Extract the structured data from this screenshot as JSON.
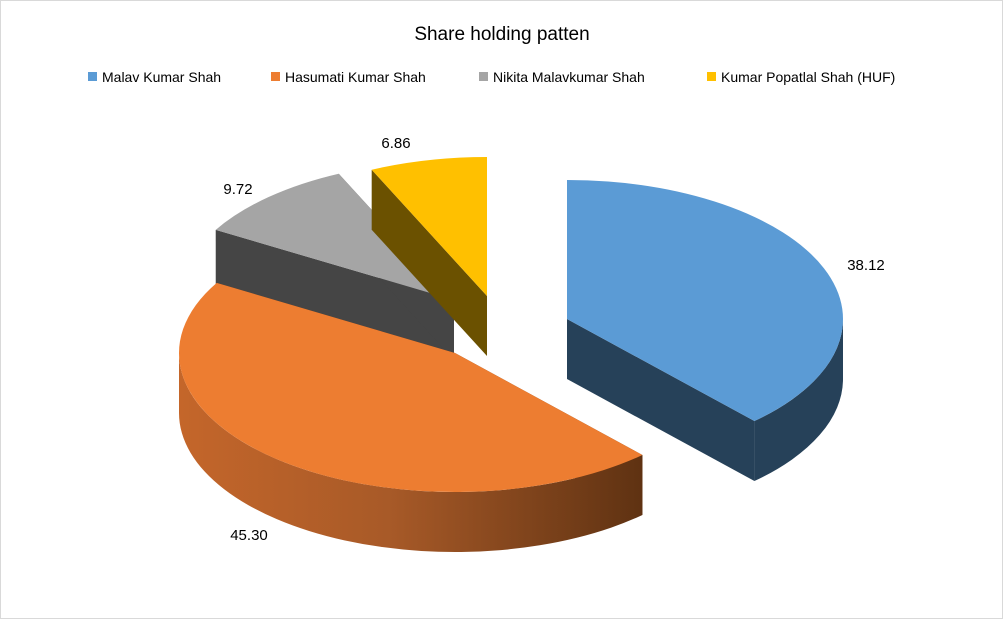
{
  "chart_data": {
    "type": "pie",
    "title": "Share holding patten",
    "categories": [
      "Malav Kumar Shah",
      "Hasumati Kumar Shah",
      "Nikita Malavkumar Shah",
      "Kumar Popatlal Shah (HUF)"
    ],
    "values": [
      38.12,
      45.3,
      9.72,
      6.86
    ],
    "value_labels": [
      "38.12",
      "45.30",
      "9.72",
      "6.86"
    ],
    "colors": [
      "#5B9BD5",
      "#ED7D31",
      "#A5A5A5",
      "#FFC000"
    ],
    "exploded": true,
    "style": "3d",
    "legend_position": "top"
  }
}
